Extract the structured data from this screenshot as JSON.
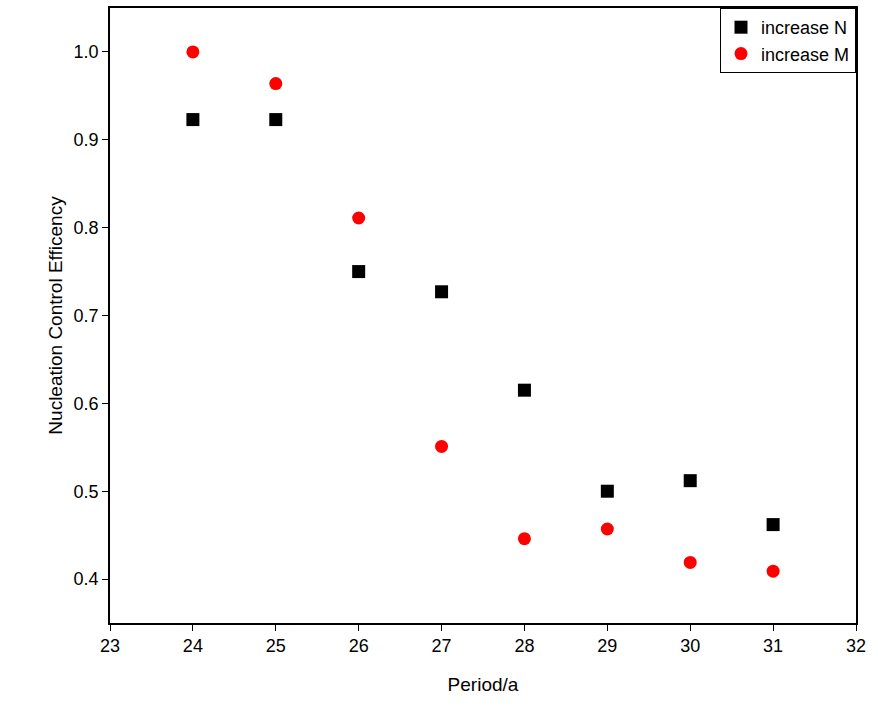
{
  "chart_data": {
    "type": "scatter",
    "x_label": "Period/a",
    "y_label": "Nucleation Control Efficency",
    "x": [
      24,
      25,
      26,
      27,
      28,
      29,
      30,
      31
    ],
    "series": [
      {
        "name": "increase N",
        "color": "#000000",
        "marker": "square",
        "values": [
          0.923,
          0.923,
          0.75,
          0.727,
          0.615,
          0.5,
          0.512,
          0.462
        ]
      },
      {
        "name": "increase M",
        "color": "#ff0000",
        "marker": "circle",
        "values": [
          1.0,
          0.964,
          0.811,
          0.551,
          0.446,
          0.457,
          0.419,
          0.409
        ]
      }
    ],
    "xlim": [
      23,
      32
    ],
    "xticks": [
      23,
      24,
      25,
      26,
      27,
      28,
      29,
      30,
      31,
      32
    ],
    "ylim": [
      0.35,
      1.05
    ],
    "yticks": [
      {
        "value": 0.4,
        "label": "0.4"
      },
      {
        "value": 0.5,
        "label": "0.5"
      },
      {
        "value": 0.6,
        "label": "0.6"
      },
      {
        "value": 0.7,
        "label": "0.7"
      },
      {
        "value": 0.8,
        "label": "0.8"
      },
      {
        "value": 0.9,
        "label": "0.9"
      },
      {
        "value": 1.0,
        "label": "1.0"
      }
    ],
    "grid": false,
    "legend": "upper right"
  }
}
